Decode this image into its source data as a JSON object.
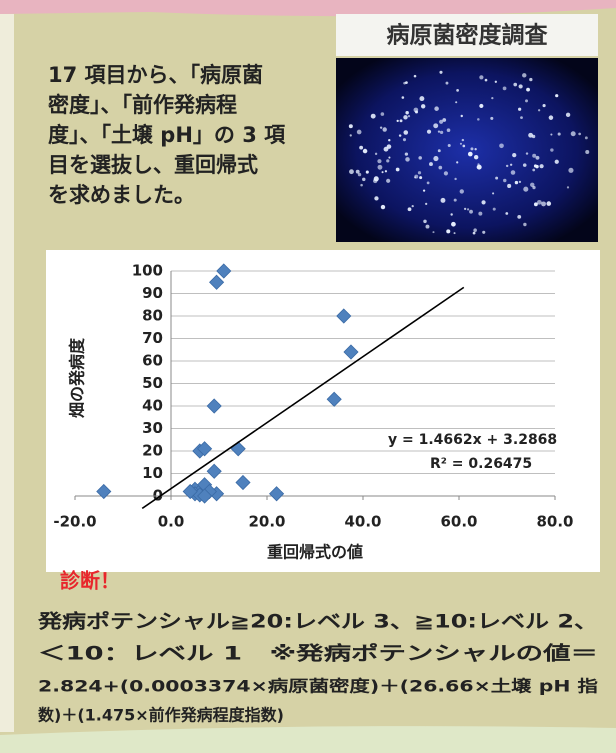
{
  "photo_title": "病原菌密度調査",
  "intro_lines": [
    "17 項目から、「病原菌",
    "密度」、「前作発病程",
    "度」、「土壌 pH」の 3 項",
    "目を選抜し、重回帰式",
    "を求めました。"
  ],
  "chart_data": {
    "type": "scatter",
    "x_label": "重回帰式の値",
    "y_label": "畑の発病度",
    "x": [
      -14,
      11,
      9.5,
      36,
      37.5,
      34,
      9,
      6,
      7,
      14,
      9,
      15,
      22,
      9.5,
      5,
      6,
      7,
      8,
      5,
      6,
      7,
      4
    ],
    "values": [
      2,
      100,
      95,
      80,
      64,
      43,
      40,
      20,
      21,
      21,
      11,
      6,
      1,
      1,
      3,
      2,
      5,
      2,
      1,
      0.5,
      0,
      2
    ],
    "color": "#4f81bd",
    "xlim": [
      -20,
      80
    ],
    "ylim": [
      0,
      100
    ],
    "xticks": [
      {
        "value": -20,
        "label": "-20.0"
      },
      {
        "value": 0,
        "label": "0.0"
      },
      {
        "value": 20,
        "label": "20.0"
      },
      {
        "value": 40,
        "label": "40.0"
      },
      {
        "value": 60,
        "label": "60.0"
      },
      {
        "value": 80,
        "label": "80.0"
      }
    ],
    "yticks": [
      0,
      10,
      20,
      30,
      40,
      50,
      60,
      70,
      80,
      90,
      100
    ],
    "grid": true,
    "trendline": {
      "slope": 1.4662,
      "intercept": 3.2868,
      "x": [
        -6,
        61
      ],
      "equation": "y = 1.4662x + 3.2868",
      "r2": "R² = 0.26475"
    }
  },
  "diagnosis_title": "診断！",
  "diagnosis_lines": [
    "発病ポテンシャル≧20:レベル 3、≧10:レベル 2、",
    "＜10：レベル 1　※発病ポテンシャルの値＝"
  ],
  "formula_lines": [
    "2.824+(0.0003374×病原菌密度)＋(26.66×土壌 pH 指",
    "数)＋(1.475×前作発病程度指数)"
  ]
}
